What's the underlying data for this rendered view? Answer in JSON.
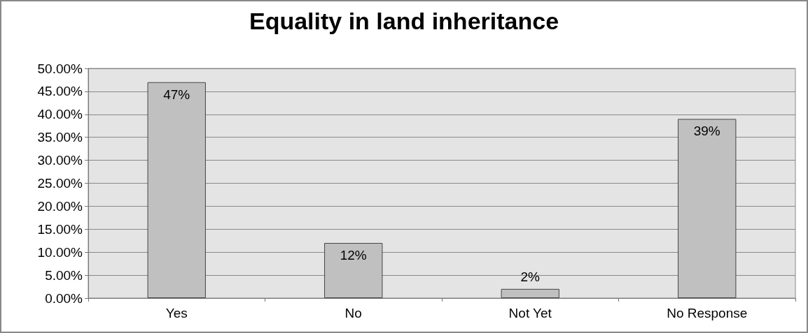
{
  "chart_data": {
    "type": "bar",
    "title": "Equality in land inheritance",
    "categories": [
      "Yes",
      "No",
      "Not Yet",
      "No Response"
    ],
    "values": [
      47,
      12,
      2,
      39
    ],
    "value_labels": [
      "47%",
      "12%",
      "2%",
      "39%"
    ],
    "color": "#c0c0c0",
    "ylim": [
      0,
      50
    ],
    "yticks": [
      {
        "value": 0,
        "label": "0.00%"
      },
      {
        "value": 5,
        "label": "5.00%"
      },
      {
        "value": 10,
        "label": "10.00%"
      },
      {
        "value": 15,
        "label": "15.00%"
      },
      {
        "value": 20,
        "label": "20.00%"
      },
      {
        "value": 25,
        "label": "25.00%"
      },
      {
        "value": 30,
        "label": "30.00%"
      },
      {
        "value": 35,
        "label": "35.00%"
      },
      {
        "value": 40,
        "label": "40.00%"
      },
      {
        "value": 45,
        "label": "45.00%"
      },
      {
        "value": 50,
        "label": "50.00%"
      }
    ],
    "grid": "y"
  }
}
